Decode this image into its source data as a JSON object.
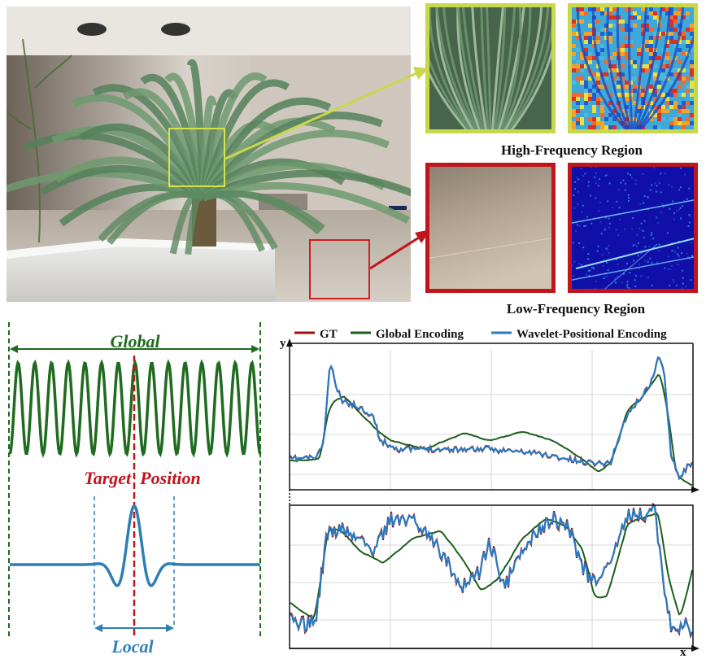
{
  "regions": {
    "high_label": "High-Frequency Region",
    "low_label": "Low-Frequency Region"
  },
  "signal_diagram": {
    "global_label": "Global",
    "target_label": "Target  Position",
    "local_label": "Local",
    "colors": {
      "global": "#1f6b1f",
      "local": "#2f7fb5",
      "target": "#c0141c"
    }
  },
  "plot": {
    "y_axis_label": "y",
    "x_axis_label": "x",
    "legend": [
      {
        "label": "GT",
        "color": "#a01010"
      },
      {
        "label": "Global Encoding",
        "color": "#1d5e1d"
      },
      {
        "label": "Wavelet-Positional Encoding",
        "color": "#2a78c0"
      }
    ]
  },
  "colors": {
    "high_box": "#c9d84a",
    "low_box": "#c0151a"
  }
}
